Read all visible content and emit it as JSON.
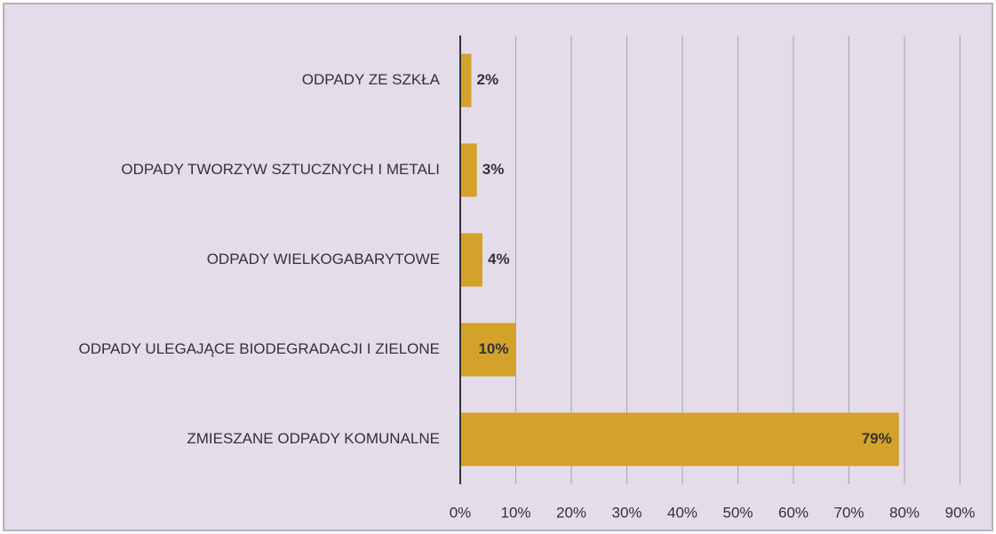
{
  "chart_data": {
    "type": "bar",
    "orientation": "horizontal",
    "categories": [
      "ODPADY ZE SZKŁA",
      "ODPADY TWORZYW SZTUCZNYCH I METALI",
      "ODPADY WIELKOGABARYTOWE",
      "ODPADY ULEGAJĄCE BIODEGRADACJI I ZIELONE",
      "ZMIESZANE ODPADY KOMUNALNE"
    ],
    "values": [
      2,
      3,
      4,
      10,
      79
    ],
    "value_labels": [
      "2%",
      "3%",
      "4%",
      "10%",
      "79%"
    ],
    "color": "#d4a12a",
    "xlim": [
      0,
      90
    ],
    "xticks": [
      {
        "value": 0,
        "label": "0%"
      },
      {
        "value": 10,
        "label": "10%"
      },
      {
        "value": 20,
        "label": "20%"
      },
      {
        "value": 30,
        "label": "30%"
      },
      {
        "value": 40,
        "label": "40%"
      },
      {
        "value": 50,
        "label": "50%"
      },
      {
        "value": 60,
        "label": "60%"
      },
      {
        "value": 70,
        "label": "70%"
      },
      {
        "value": 80,
        "label": "80%"
      },
      {
        "value": 90,
        "label": "90%"
      }
    ],
    "grid": true
  }
}
